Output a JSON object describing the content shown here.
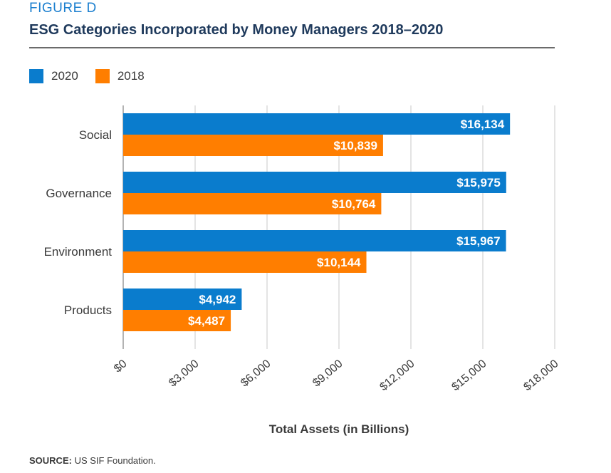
{
  "figure_label": "FIGURE D",
  "title": "ESG Categories Incorporated by Money Managers 2018–2020",
  "source": {
    "label": "SOURCE:",
    "text": " US SIF Foundation."
  },
  "chart_data": {
    "type": "bar",
    "orientation": "horizontal",
    "categories": [
      "Social",
      "Governance",
      "Environment",
      "Products"
    ],
    "series": [
      {
        "name": "2020",
        "color": "#0a7ccd",
        "values": [
          16134,
          15975,
          15967,
          4942
        ],
        "labels": [
          "$16,134",
          "$15,975",
          "$15,967",
          "$4,942"
        ]
      },
      {
        "name": "2018",
        "color": "#ff7e00",
        "values": [
          10839,
          10764,
          10144,
          4487
        ],
        "labels": [
          "$10,839",
          "$10,764",
          "$10,144",
          "$4,487"
        ]
      }
    ],
    "xlim": [
      0,
      18000
    ],
    "xticks": [
      0,
      3000,
      6000,
      9000,
      12000,
      15000,
      18000
    ],
    "xtick_labels": [
      "$0",
      "$3,000",
      "$6,000",
      "$9,000",
      "$12,000",
      "$15,000",
      "$18,000"
    ],
    "xlabel": "Total Assets (in Billions)",
    "ylabel": "",
    "grid": "vertical",
    "legend_position": "top-left"
  }
}
